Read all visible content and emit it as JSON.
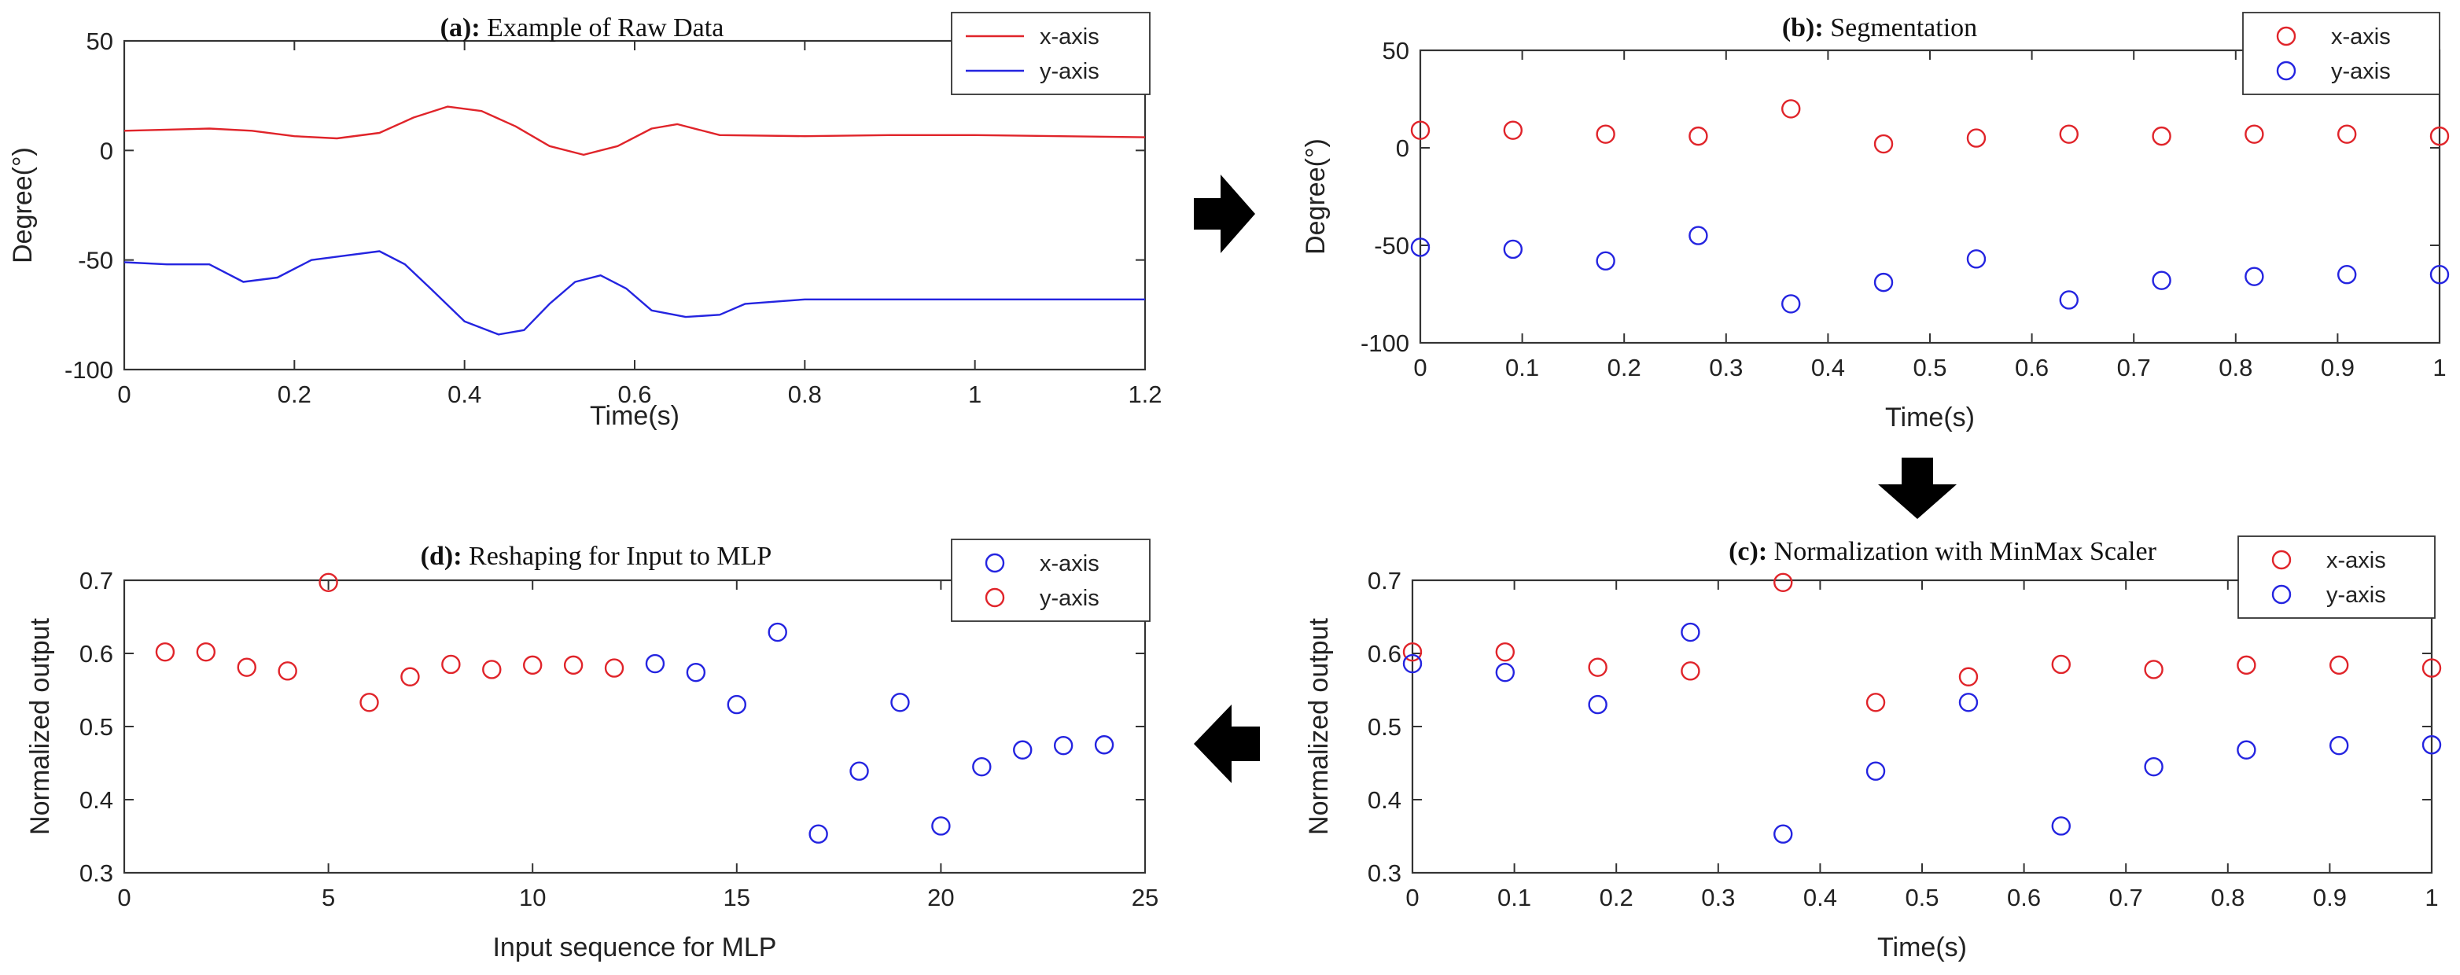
{
  "chart_data": [
    {
      "id": "a",
      "type": "line",
      "title_prefix": "(a):",
      "title": "Example of Raw Data",
      "xlabel": "Time(s)",
      "ylabel": "Degree(°)",
      "xlim": [
        0,
        1.2
      ],
      "ylim": [
        -100,
        50
      ],
      "xticks": [
        0,
        0.2,
        0.4,
        0.6,
        0.8,
        1,
        1.2
      ],
      "xtick_labels": [
        "0",
        "0.2",
        "0.4",
        "0.6",
        "0.8",
        "1",
        "1.2"
      ],
      "yticks": [
        -100,
        -50,
        0,
        50
      ],
      "ytick_labels": [
        "-100",
        "-50",
        "0",
        "50"
      ],
      "legend": {
        "position": "top-right",
        "entries": [
          "x-axis",
          "y-axis"
        ]
      },
      "series": [
        {
          "name": "x-axis",
          "color": "#e0242a",
          "points": [
            [
              0,
              9
            ],
            [
              0.05,
              9.5
            ],
            [
              0.1,
              10
            ],
            [
              0.15,
              9
            ],
            [
              0.2,
              6.5
            ],
            [
              0.25,
              5.5
            ],
            [
              0.3,
              8
            ],
            [
              0.34,
              15
            ],
            [
              0.38,
              20
            ],
            [
              0.42,
              18
            ],
            [
              0.46,
              11
            ],
            [
              0.5,
              2
            ],
            [
              0.54,
              -2
            ],
            [
              0.58,
              2
            ],
            [
              0.62,
              10
            ],
            [
              0.65,
              12
            ],
            [
              0.7,
              7
            ],
            [
              0.8,
              6.5
            ],
            [
              0.9,
              7
            ],
            [
              1.0,
              7
            ],
            [
              1.1,
              6.5
            ],
            [
              1.2,
              6
            ]
          ]
        },
        {
          "name": "y-axis",
          "color": "#2424e0",
          "points": [
            [
              0,
              -51
            ],
            [
              0.05,
              -52
            ],
            [
              0.1,
              -52
            ],
            [
              0.14,
              -60
            ],
            [
              0.18,
              -58
            ],
            [
              0.22,
              -50
            ],
            [
              0.26,
              -48
            ],
            [
              0.3,
              -46
            ],
            [
              0.33,
              -52
            ],
            [
              0.36,
              -63
            ],
            [
              0.4,
              -78
            ],
            [
              0.44,
              -84
            ],
            [
              0.47,
              -82
            ],
            [
              0.5,
              -70
            ],
            [
              0.53,
              -60
            ],
            [
              0.56,
              -57
            ],
            [
              0.59,
              -63
            ],
            [
              0.62,
              -73
            ],
            [
              0.66,
              -76
            ],
            [
              0.7,
              -75
            ],
            [
              0.73,
              -70
            ],
            [
              0.8,
              -68
            ],
            [
              0.9,
              -68
            ],
            [
              1.0,
              -68
            ],
            [
              1.1,
              -68
            ],
            [
              1.2,
              -68
            ]
          ]
        }
      ]
    },
    {
      "id": "b",
      "type": "scatter",
      "title_prefix": "(b):",
      "title": "Segmentation",
      "xlabel": "Time(s)",
      "ylabel": "Degree(°)",
      "xlim": [
        0,
        1
      ],
      "ylim": [
        -100,
        50
      ],
      "xticks": [
        0,
        0.1,
        0.2,
        0.3,
        0.4,
        0.5,
        0.6,
        0.7,
        0.8,
        0.9,
        1
      ],
      "xtick_labels": [
        "0",
        "0.1",
        "0.2",
        "0.3",
        "0.4",
        "0.5",
        "0.6",
        "0.7",
        "0.8",
        "0.9",
        "1"
      ],
      "yticks": [
        -100,
        -50,
        0,
        50
      ],
      "ytick_labels": [
        "-100",
        "-50",
        "0",
        "50"
      ],
      "legend": {
        "position": "top-right",
        "entries": [
          "x-axis",
          "y-axis"
        ]
      },
      "series": [
        {
          "name": "x-axis",
          "color": "#e0242a",
          "x": [
            0,
            0.0909,
            0.1818,
            0.2727,
            0.3636,
            0.4545,
            0.5455,
            0.6364,
            0.7273,
            0.8182,
            0.9091,
            1
          ],
          "y": [
            9,
            9,
            7,
            6,
            20,
            2,
            5,
            7,
            6,
            7,
            7,
            6
          ]
        },
        {
          "name": "y-axis",
          "color": "#2424e0",
          "x": [
            0,
            0.0909,
            0.1818,
            0.2727,
            0.3636,
            0.4545,
            0.5455,
            0.6364,
            0.7273,
            0.8182,
            0.9091,
            1
          ],
          "y": [
            -51,
            -52,
            -58,
            -45,
            -80,
            -69,
            -57,
            -78,
            -68,
            -66,
            -65,
            -65
          ]
        }
      ]
    },
    {
      "id": "c",
      "type": "scatter",
      "title_prefix": "(c):",
      "title": "Normalization with MinMax Scaler",
      "xlabel": "Time(s)",
      "ylabel": "Normalized output",
      "xlim": [
        0,
        1
      ],
      "ylim": [
        0.3,
        0.7
      ],
      "xticks": [
        0,
        0.1,
        0.2,
        0.3,
        0.4,
        0.5,
        0.6,
        0.7,
        0.8,
        0.9,
        1
      ],
      "xtick_labels": [
        "0",
        "0.1",
        "0.2",
        "0.3",
        "0.4",
        "0.5",
        "0.6",
        "0.7",
        "0.8",
        "0.9",
        "1"
      ],
      "yticks": [
        0.3,
        0.4,
        0.5,
        0.6,
        0.7
      ],
      "ytick_labels": [
        "0.3",
        "0.4",
        "0.5",
        "0.6",
        "0.7"
      ],
      "legend": {
        "position": "top-right",
        "entries": [
          "x-axis",
          "y-axis"
        ]
      },
      "series": [
        {
          "name": "x-axis",
          "color": "#e0242a",
          "x": [
            0,
            0.0909,
            0.1818,
            0.2727,
            0.3636,
            0.4545,
            0.5455,
            0.6364,
            0.7273,
            0.8182,
            0.9091,
            1
          ],
          "y": [
            0.602,
            0.602,
            0.581,
            0.576,
            0.697,
            0.533,
            0.568,
            0.585,
            0.578,
            0.584,
            0.584,
            0.58
          ]
        },
        {
          "name": "y-axis",
          "color": "#2424e0",
          "x": [
            0,
            0.0909,
            0.1818,
            0.2727,
            0.3636,
            0.4545,
            0.5455,
            0.6364,
            0.7273,
            0.8182,
            0.9091,
            1
          ],
          "y": [
            0.586,
            0.574,
            0.53,
            0.629,
            0.353,
            0.439,
            0.533,
            0.364,
            0.445,
            0.468,
            0.474,
            0.475
          ]
        }
      ]
    },
    {
      "id": "d",
      "type": "scatter",
      "title_prefix": "(d):",
      "title": "Reshaping for Input to MLP",
      "xlabel": "Input sequence for MLP",
      "ylabel": "Normalized output",
      "xlim": [
        0,
        25
      ],
      "ylim": [
        0.3,
        0.7
      ],
      "xticks": [
        0,
        5,
        10,
        15,
        20,
        25
      ],
      "xtick_labels": [
        "0",
        "5",
        "10",
        "15",
        "20",
        "25"
      ],
      "yticks": [
        0.3,
        0.4,
        0.5,
        0.6,
        0.7
      ],
      "ytick_labels": [
        "0.3",
        "0.4",
        "0.5",
        "0.6",
        "0.7"
      ],
      "legend": {
        "position": "top-right",
        "entries": [
          "x-axis",
          "y-axis"
        ]
      },
      "series": [
        {
          "name": "x-axis",
          "color": "#2424e0",
          "x": [
            13,
            14,
            15,
            16,
            17,
            18,
            19,
            20,
            21,
            22,
            23,
            24
          ],
          "y": [
            0.586,
            0.574,
            0.53,
            0.629,
            0.353,
            0.439,
            0.533,
            0.364,
            0.445,
            0.468,
            0.474,
            0.475
          ]
        },
        {
          "name": "y-axis",
          "color": "#e0242a",
          "x": [
            1,
            2,
            3,
            4,
            5,
            6,
            7,
            8,
            9,
            10,
            11,
            12
          ],
          "y": [
            0.602,
            0.602,
            0.581,
            0.576,
            0.697,
            0.533,
            0.568,
            0.585,
            0.578,
            0.584,
            0.584,
            0.58
          ]
        }
      ]
    }
  ],
  "arrows": [
    {
      "name": "arrow-a-to-b-icon",
      "direction": "right",
      "color": "#000000"
    },
    {
      "name": "arrow-b-to-c-icon",
      "direction": "down",
      "color": "#000000"
    },
    {
      "name": "arrow-c-to-d-icon",
      "direction": "left",
      "color": "#000000"
    }
  ]
}
